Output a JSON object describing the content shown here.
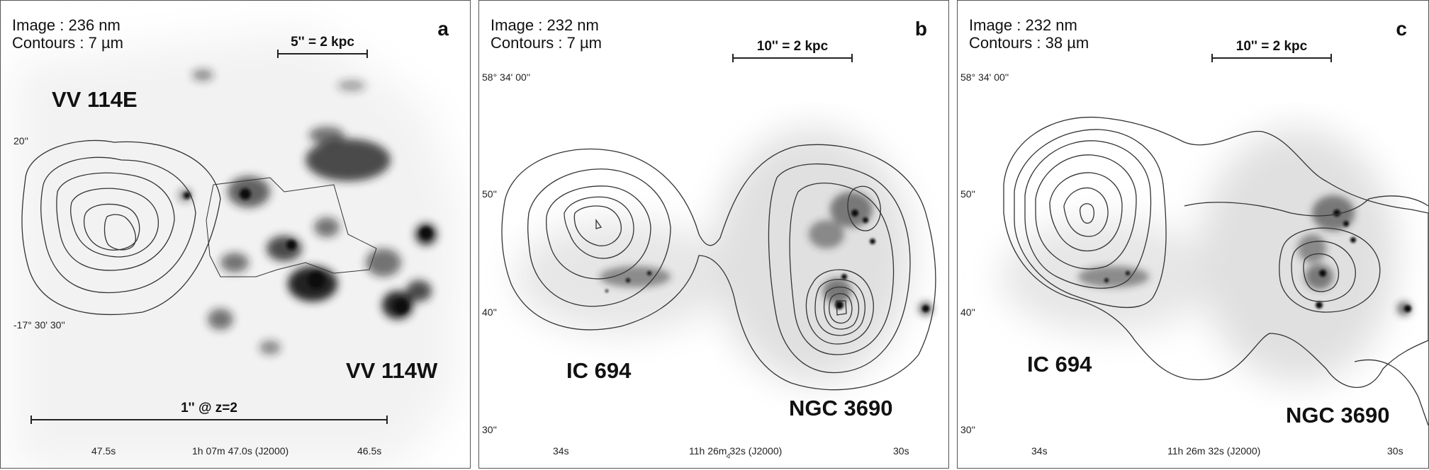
{
  "panels": [
    {
      "letter": "a",
      "image_line": "Image : 236 nm",
      "contour_line": "Contours : 7 µm",
      "scale_label": "5'' = 2 kpc",
      "galaxy_labels": [
        "VV 114E",
        "VV 114W"
      ],
      "extra_scale_label": "1'' @ z=2",
      "y_ticks": [
        "20''",
        "-17° 30' 30''"
      ],
      "x_ticks": [
        "47.5s",
        "1h 07m 47.0s (J2000)",
        "46.5s"
      ]
    },
    {
      "letter": "b",
      "image_line": "Image : 232 nm",
      "contour_line": "Contours : 7 µm",
      "scale_label": "10'' = 2 kpc",
      "galaxy_labels": [
        "IC 694",
        "NGC 3690"
      ],
      "y_ticks": [
        "58° 34' 00''",
        "50''",
        "40''",
        "30''"
      ],
      "x_ticks": [
        "34s",
        "11h 26m 32s (J2000)",
        "30s"
      ]
    },
    {
      "letter": "c",
      "image_line": "Image : 232 nm",
      "contour_line": "Contours : 38 µm",
      "scale_label": "10'' = 2 kpc",
      "galaxy_labels": [
        "IC 694",
        "NGC 3690"
      ],
      "y_ticks": [
        "58° 34' 00''",
        "50''",
        "40''",
        "30''"
      ],
      "x_ticks": [
        "34s",
        "11h 26m 32s (J2000)",
        "30s"
      ]
    }
  ]
}
